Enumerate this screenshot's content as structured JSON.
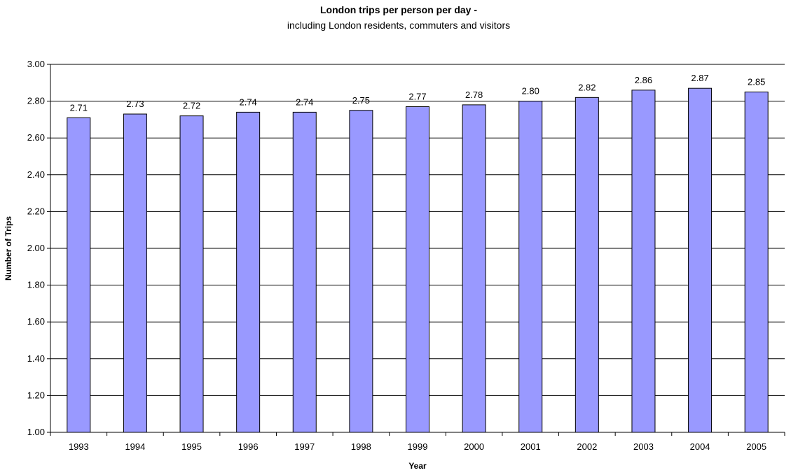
{
  "chart_data": {
    "type": "bar",
    "title": "London trips per person per day -",
    "subtitle": "including London residents, commuters and visitors",
    "xlabel": "Year",
    "ylabel": "Number of Trips",
    "categories": [
      "1993",
      "1994",
      "1995",
      "1996",
      "1997",
      "1998",
      "1999",
      "2000",
      "2001",
      "2002",
      "2003",
      "2004",
      "2005"
    ],
    "values": [
      2.71,
      2.73,
      2.72,
      2.74,
      2.74,
      2.75,
      2.77,
      2.78,
      2.8,
      2.82,
      2.86,
      2.87,
      2.85
    ],
    "data_labels": [
      "2.71",
      "2.73",
      "2.72",
      "2.74",
      "2.74",
      "2.75",
      "2.77",
      "2.78",
      "2.80",
      "2.82",
      "2.86",
      "2.87",
      "2.85"
    ],
    "ylim": [
      1.0,
      3.0
    ],
    "y_ticks": [
      "1.00",
      "1.20",
      "1.40",
      "1.60",
      "1.80",
      "2.00",
      "2.20",
      "2.40",
      "2.60",
      "2.80",
      "3.00"
    ],
    "grid": true,
    "legend": "none",
    "colors": {
      "bar_fill": "#9999ff",
      "bar_stroke": "#000000",
      "grid": "#000000",
      "background": "#ffffff"
    }
  }
}
